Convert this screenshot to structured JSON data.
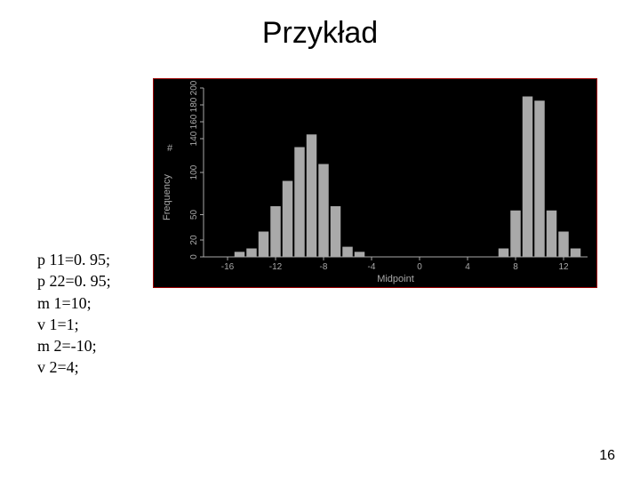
{
  "title": "Przykład",
  "page_number": "16",
  "params": [
    "p 11=0. 95;",
    "p 22=0. 95;",
    "m 1=10;",
    "v 1=1;",
    "m 2=-10;",
    "v 2=4;"
  ],
  "chart": {
    "type": "histogram",
    "background_color": "#000000",
    "border_color": "#9a0000",
    "axis_color": "#a9a9a9",
    "bar_color": "#a9a9a9",
    "label_color": "#a9a9a9",
    "label_fontsize": 10,
    "ylabel": "Frequency",
    "ylabel_prefix": "#",
    "xlabel": "Midpoint",
    "y_ticks": [
      0,
      20,
      50,
      100,
      140,
      160,
      180,
      200
    ],
    "y_tick_labels": [
      "0",
      "20",
      "50",
      "100",
      "140",
      "160",
      "180",
      "200"
    ],
    "ylim": [
      0,
      200
    ],
    "x_ticks": [
      -16,
      -12,
      -8,
      -4,
      0,
      4,
      8,
      12
    ],
    "xlim": [
      -18,
      14
    ],
    "bars": [
      {
        "x": -15,
        "h": 6
      },
      {
        "x": -14,
        "h": 10
      },
      {
        "x": -13,
        "h": 30
      },
      {
        "x": -12,
        "h": 60
      },
      {
        "x": -11,
        "h": 90
      },
      {
        "x": -10,
        "h": 130
      },
      {
        "x": -9,
        "h": 145
      },
      {
        "x": -8,
        "h": 110
      },
      {
        "x": -7,
        "h": 60
      },
      {
        "x": -6,
        "h": 12
      },
      {
        "x": -5,
        "h": 6
      },
      {
        "x": 7,
        "h": 10
      },
      {
        "x": 8,
        "h": 55
      },
      {
        "x": 9,
        "h": 190
      },
      {
        "x": 10,
        "h": 185
      },
      {
        "x": 11,
        "h": 55
      },
      {
        "x": 12,
        "h": 30
      },
      {
        "x": 13,
        "h": 10
      }
    ],
    "bar_width_units": 0.85
  }
}
